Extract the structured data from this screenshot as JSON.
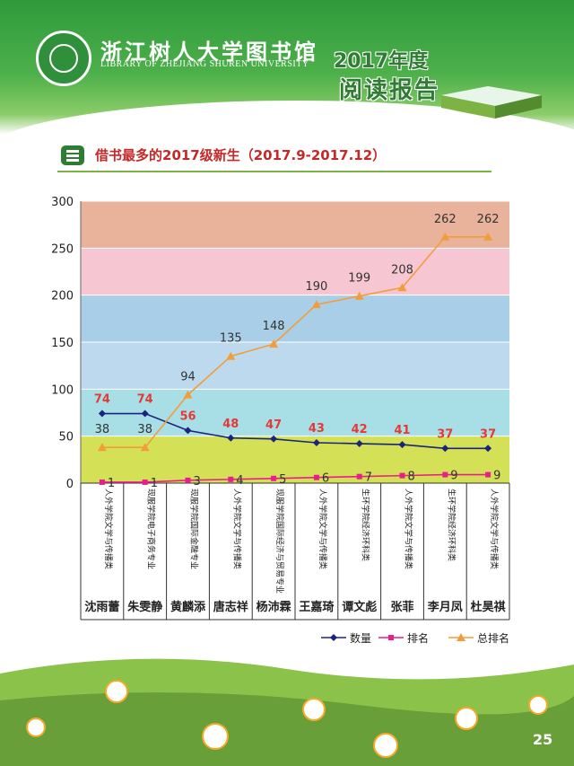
{
  "header": {
    "library_name_cn": "浙江树人大学图书馆",
    "library_name_en": "LIBRARY OF ZHEJIANG SHUREN UNIVERSITY",
    "report_year": "2017年度",
    "report_title": "阅读报告"
  },
  "section": {
    "title": "借书最多的2017级新生（2017.9-2017.12）"
  },
  "page_number": "25",
  "colors": {
    "series_count": "#1a237e",
    "series_rank": "#e91e8c",
    "series_total": "#f39c3c",
    "band_0_50": "#d4e157",
    "band_50_100": "#a8dfe6",
    "band_100_150": "#bcd9ee",
    "band_150_200": "#a9cfe8",
    "band_200_250": "#f6c7d3",
    "band_250_300": "#e8b39a",
    "header_green": "#3aa043"
  },
  "chart_data": {
    "type": "line",
    "ylim": [
      0,
      300
    ],
    "yticks": [
      "0",
      "50",
      "100",
      "150",
      "200",
      "250",
      "300"
    ],
    "categories": [
      "沈雨蕾",
      "朱雯静",
      "黄麟添",
      "唐志祥",
      "杨沛霖",
      "王嘉琦",
      "谭文彪",
      "张菲",
      "李月凤",
      "杜昊祺"
    ],
    "departments": [
      "人外学院文学与传播类",
      "现服学院电子商务专业",
      "现服学院国际金融专业",
      "人外学院文学与传播类",
      "现服学院国际经济与贸易专业",
      "人外学院文学与传播类",
      "生环学院经济环科类",
      "人外学院文学与传播类",
      "生环学院经济环科类",
      "人外学院文学与传播类"
    ],
    "series": [
      {
        "name": "数量",
        "values": [
          74,
          74,
          56,
          48,
          47,
          43,
          42,
          41,
          37,
          37
        ]
      },
      {
        "name": "排名",
        "values": [
          1,
          1,
          3,
          4,
          5,
          6,
          7,
          8,
          9,
          9
        ]
      },
      {
        "name": "总排名",
        "values": [
          38,
          38,
          94,
          135,
          148,
          190,
          199,
          208,
          262,
          262
        ]
      }
    ],
    "legend_position": "bottom-right"
  }
}
